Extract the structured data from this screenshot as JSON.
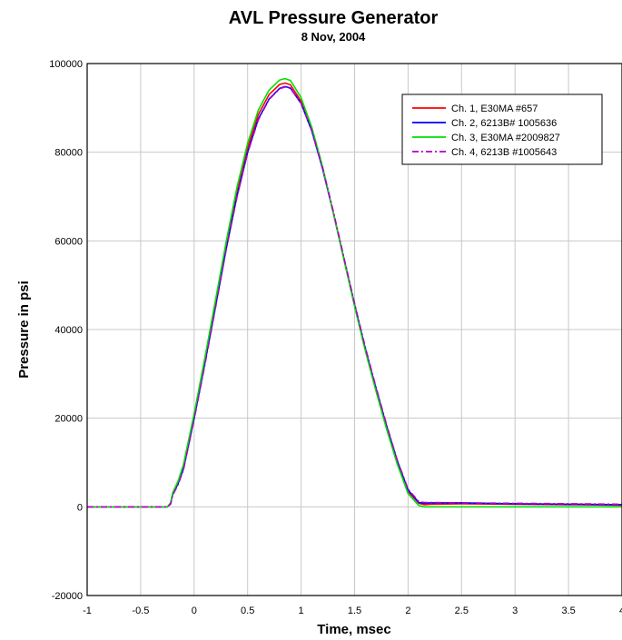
{
  "chart_data": {
    "type": "line",
    "title": "AVL Pressure Generator",
    "subtitle": "8 Nov, 2004",
    "xlabel": "Time, msec",
    "ylabel": "Pressure in psi",
    "xlim": [
      -1,
      4
    ],
    "ylim": [
      -20000,
      100000
    ],
    "xticks": [
      -1,
      -0.5,
      0,
      0.5,
      1,
      1.5,
      2,
      2.5,
      3,
      3.5,
      4
    ],
    "yticks": [
      -20000,
      0,
      20000,
      40000,
      60000,
      80000,
      100000
    ],
    "xtick_labels": [
      "-1",
      "-0.5",
      "0",
      "0.5",
      "1",
      "1.5",
      "2",
      "2.5",
      "3",
      "3.5",
      "4"
    ],
    "ytick_labels": [
      "-20000",
      "0",
      "20000",
      "40000",
      "60000",
      "80000",
      "100000"
    ],
    "grid": true,
    "legend_position": "top-right",
    "series": [
      {
        "name": "Ch. 1, E30MA #657",
        "color": "#ff0000",
        "dash": "solid",
        "x": [
          -1,
          -0.25,
          -0.22,
          -0.2,
          -0.15,
          -0.1,
          0,
          0.1,
          0.2,
          0.3,
          0.4,
          0.5,
          0.6,
          0.7,
          0.8,
          0.85,
          0.9,
          1.0,
          1.1,
          1.2,
          1.3,
          1.4,
          1.5,
          1.6,
          1.7,
          1.8,
          1.9,
          2.0,
          2.1,
          2.15,
          2.2,
          2.5,
          3.0,
          3.5,
          4
        ],
        "y": [
          0,
          0,
          800,
          3000,
          5500,
          9000,
          20500,
          33000,
          46000,
          59000,
          71000,
          81000,
          88500,
          93000,
          95300,
          95600,
          95200,
          91500,
          85000,
          76500,
          66500,
          56000,
          45500,
          35500,
          26500,
          18000,
          10000,
          3500,
          800,
          500,
          600,
          700,
          600,
          500,
          400
        ]
      },
      {
        "name": "Ch. 2, 6213B# 1005636",
        "color": "#0000ff",
        "dash": "solid",
        "x": [
          -1,
          -0.25,
          -0.22,
          -0.2,
          -0.15,
          -0.1,
          0,
          0.1,
          0.2,
          0.3,
          0.4,
          0.5,
          0.6,
          0.7,
          0.8,
          0.85,
          0.9,
          1.0,
          1.1,
          1.2,
          1.3,
          1.4,
          1.5,
          1.6,
          1.7,
          1.8,
          1.9,
          2.0,
          2.1,
          2.15,
          2.2,
          2.5,
          3.0,
          3.5,
          4
        ],
        "y": [
          0,
          0,
          800,
          2800,
          5200,
          8600,
          20000,
          32400,
          45300,
          58200,
          70000,
          80000,
          87500,
          92000,
          94400,
          94800,
          94500,
          91000,
          84800,
          76300,
          66500,
          56000,
          45600,
          35700,
          26700,
          18200,
          10300,
          3800,
          1000,
          800,
          900,
          900,
          700,
          600,
          500
        ]
      },
      {
        "name": "Ch. 3, E30MA #2009827",
        "color": "#00e000",
        "dash": "solid",
        "x": [
          -1,
          -0.25,
          -0.22,
          -0.2,
          -0.15,
          -0.1,
          0,
          0.1,
          0.2,
          0.3,
          0.4,
          0.5,
          0.6,
          0.7,
          0.8,
          0.85,
          0.9,
          1.0,
          1.1,
          1.2,
          1.3,
          1.4,
          1.5,
          1.6,
          1.7,
          1.8,
          1.9,
          2.0,
          2.1,
          2.15,
          2.2,
          2.5,
          3.0,
          3.5,
          4
        ],
        "y": [
          0,
          0,
          900,
          3200,
          5800,
          9500,
          21000,
          33600,
          46700,
          59800,
          72000,
          82000,
          89500,
          94000,
          96300,
          96600,
          96200,
          92300,
          85600,
          76800,
          66500,
          55800,
          45200,
          35200,
          26100,
          17500,
          9600,
          3000,
          300,
          0,
          0,
          0,
          0,
          0,
          0
        ]
      },
      {
        "name": "Ch. 4, 6213B #1005643",
        "color": "#b000c0",
        "dash": "dash-dot",
        "x": [
          -1,
          -0.25,
          -0.22,
          -0.2,
          -0.15,
          -0.1,
          0,
          0.1,
          0.2,
          0.3,
          0.4,
          0.5,
          0.6,
          0.7,
          0.8,
          0.85,
          0.9,
          1.0,
          1.1,
          1.2,
          1.3,
          1.4,
          1.5,
          1.6,
          1.7,
          1.8,
          1.9,
          2.0,
          2.1,
          2.15,
          2.2,
          2.5,
          3.0,
          3.5,
          4
        ],
        "y": [
          0,
          0,
          600,
          2600,
          5000,
          8300,
          19700,
          32000,
          45000,
          58000,
          69800,
          79800,
          87300,
          91900,
          94300,
          94700,
          94400,
          91000,
          84900,
          76500,
          66800,
          56300,
          45900,
          36000,
          27000,
          18500,
          10500,
          4000,
          1200,
          1000,
          1000,
          900,
          800,
          700,
          600
        ]
      }
    ]
  }
}
